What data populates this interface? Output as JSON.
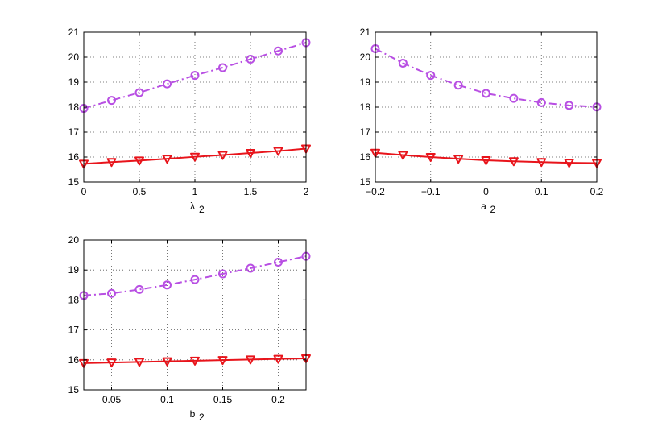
{
  "colors": {
    "purple": "#b84fe3",
    "red": "#e8141b",
    "axis": "#000000",
    "grid": "#555555"
  },
  "chart_data": [
    {
      "type": "line",
      "xlabel": "λ₂",
      "xlabel_main": "λ",
      "xlabel_sub": "2",
      "xlim": [
        0,
        2
      ],
      "ylim": [
        15,
        21
      ],
      "grid": true,
      "xticks": [
        0,
        0.5,
        1,
        1.5,
        2
      ],
      "xtick_labels": [
        "0",
        "0.5",
        "1",
        "1.5",
        "2"
      ],
      "yticks": [
        15,
        16,
        17,
        18,
        19,
        20,
        21
      ],
      "ytick_labels": [
        "15",
        "16",
        "17",
        "18",
        "19",
        "20",
        "21"
      ],
      "x": [
        0,
        0.25,
        0.5,
        0.75,
        1,
        1.25,
        1.5,
        1.75,
        2
      ],
      "series": [
        {
          "style": "dash-dot",
          "marker": "circle",
          "color": "#b84fe3",
          "values": [
            17.95,
            18.27,
            18.58,
            18.93,
            19.27,
            19.58,
            19.92,
            20.25,
            20.58
          ]
        },
        {
          "style": "solid",
          "marker": "triangle-down",
          "color": "#e8141b",
          "values": [
            15.73,
            15.8,
            15.86,
            15.93,
            16.01,
            16.08,
            16.16,
            16.24,
            16.34
          ]
        }
      ]
    },
    {
      "type": "line",
      "xlabel": "a₂",
      "xlabel_main": "a",
      "xlabel_sub": "2",
      "xlim": [
        -0.2,
        0.2
      ],
      "ylim": [
        15,
        21
      ],
      "grid": true,
      "xticks": [
        -0.2,
        -0.1,
        0,
        0.1,
        0.2
      ],
      "xtick_labels": [
        "−0.2",
        "−0.1",
        "0",
        "0.1",
        "0.2"
      ],
      "yticks": [
        15,
        16,
        17,
        18,
        19,
        20,
        21
      ],
      "ytick_labels": [
        "15",
        "16",
        "17",
        "18",
        "19",
        "20",
        "21"
      ],
      "x": [
        -0.2,
        -0.15,
        -0.1,
        -0.05,
        0,
        0.05,
        0.1,
        0.15,
        0.2
      ],
      "series": [
        {
          "style": "dash-dot",
          "marker": "circle",
          "color": "#b84fe3",
          "values": [
            20.34,
            19.76,
            19.27,
            18.88,
            18.55,
            18.35,
            18.18,
            18.07,
            18.01
          ]
        },
        {
          "style": "solid",
          "marker": "triangle-down",
          "color": "#e8141b",
          "values": [
            16.17,
            16.08,
            16.0,
            15.93,
            15.87,
            15.83,
            15.8,
            15.77,
            15.76
          ]
        }
      ]
    },
    {
      "type": "line",
      "xlabel": "b₂",
      "xlabel_main": "b",
      "xlabel_sub": "2",
      "xlim": [
        0.025,
        0.225
      ],
      "ylim": [
        15,
        20
      ],
      "grid": true,
      "xticks": [
        0.05,
        0.1,
        0.15,
        0.2
      ],
      "xtick_labels": [
        "0.05",
        "0.1",
        "0.15",
        "0.2"
      ],
      "yticks": [
        15,
        16,
        17,
        18,
        19,
        20
      ],
      "ytick_labels": [
        "15",
        "16",
        "17",
        "18",
        "19",
        "20"
      ],
      "x": [
        0.025,
        0.05,
        0.075,
        0.1,
        0.125,
        0.15,
        0.175,
        0.2,
        0.225
      ],
      "series": [
        {
          "style": "dash-dot",
          "marker": "circle",
          "color": "#b84fe3",
          "values": [
            18.15,
            18.22,
            18.35,
            18.5,
            18.68,
            18.87,
            19.06,
            19.26,
            19.46
          ]
        },
        {
          "style": "solid",
          "marker": "triangle-down",
          "color": "#e8141b",
          "values": [
            15.89,
            15.91,
            15.93,
            15.95,
            15.97,
            15.99,
            16.01,
            16.03,
            16.05
          ]
        }
      ]
    }
  ]
}
